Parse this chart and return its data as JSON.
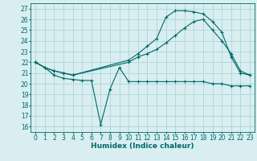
{
  "xlabel": "Humidex (Indice chaleur)",
  "background_color": "#d8eef0",
  "grid_color": "#b0d4d8",
  "line_color": "#006868",
  "x_ticks": [
    0,
    1,
    2,
    3,
    4,
    5,
    6,
    7,
    8,
    9,
    10,
    11,
    12,
    13,
    14,
    15,
    16,
    17,
    18,
    19,
    20,
    21,
    22,
    23
  ],
  "y_ticks": [
    16,
    17,
    18,
    19,
    20,
    21,
    22,
    23,
    24,
    25,
    26,
    27
  ],
  "xlim": [
    -0.5,
    23.5
  ],
  "ylim": [
    15.5,
    27.5
  ],
  "line1_x": [
    0,
    1,
    2,
    3,
    4,
    5,
    6,
    7,
    8,
    9,
    10,
    11,
    12,
    13,
    14,
    15,
    16,
    17,
    18,
    19,
    20,
    21,
    22,
    23
  ],
  "line1_y": [
    22.0,
    21.5,
    20.8,
    20.5,
    20.4,
    20.3,
    20.3,
    16.2,
    19.5,
    21.5,
    20.2,
    20.2,
    20.2,
    20.2,
    20.2,
    20.2,
    20.2,
    20.2,
    20.2,
    20.0,
    20.0,
    19.8,
    19.8,
    19.8
  ],
  "line2_x": [
    0,
    1,
    2,
    3,
    4,
    10,
    11,
    12,
    13,
    14,
    15,
    16,
    17,
    18,
    19,
    20,
    21,
    22,
    23
  ],
  "line2_y": [
    22.0,
    21.5,
    21.2,
    21.0,
    20.8,
    22.0,
    22.5,
    22.8,
    23.2,
    23.8,
    24.5,
    25.2,
    25.8,
    26.0,
    25.0,
    24.0,
    22.8,
    21.2,
    20.8
  ],
  "line3_x": [
    0,
    1,
    2,
    3,
    4,
    10,
    11,
    12,
    13,
    14,
    15,
    16,
    17,
    18,
    19,
    20,
    21,
    22,
    23
  ],
  "line3_y": [
    22.0,
    21.5,
    21.2,
    21.0,
    20.8,
    22.2,
    22.8,
    23.5,
    24.2,
    26.2,
    26.8,
    26.8,
    26.7,
    26.5,
    25.8,
    24.8,
    22.5,
    21.0,
    20.8
  ]
}
